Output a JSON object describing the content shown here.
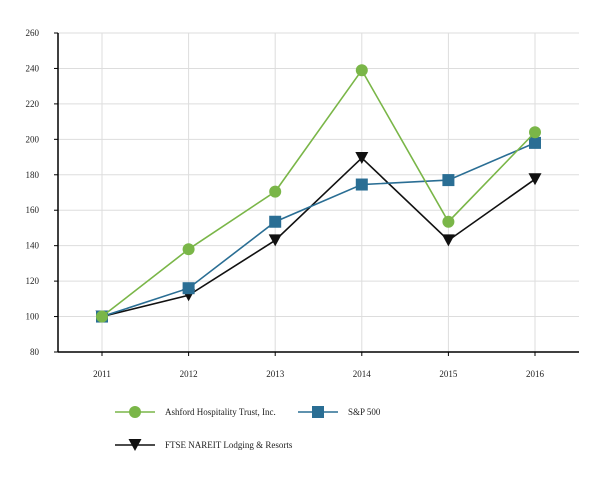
{
  "chart_data": {
    "type": "line",
    "title": "",
    "xlabel": "",
    "ylabel": "",
    "categories": [
      "2011",
      "2012",
      "2013",
      "2014",
      "2015",
      "2016"
    ],
    "ylim": [
      80,
      260
    ],
    "yticks": [
      80,
      100,
      120,
      140,
      160,
      180,
      200,
      220,
      240,
      260
    ],
    "grid": true,
    "series": [
      {
        "name": "Ashford Hospitality Trust, Inc.",
        "values": [
          100,
          138,
          170.5,
          239,
          153.5,
          204
        ],
        "color": "#7ab648",
        "marker": "circle"
      },
      {
        "name": "S&P 500",
        "values": [
          100,
          116,
          153.5,
          174.5,
          177,
          198
        ],
        "color": "#2a6e94",
        "marker": "square"
      },
      {
        "name": "FTSE NAREIT Lodging & Resorts",
        "values": [
          100,
          112,
          143,
          189.5,
          143,
          177.5
        ],
        "color": "#111111",
        "marker": "triangle-down"
      }
    ]
  }
}
